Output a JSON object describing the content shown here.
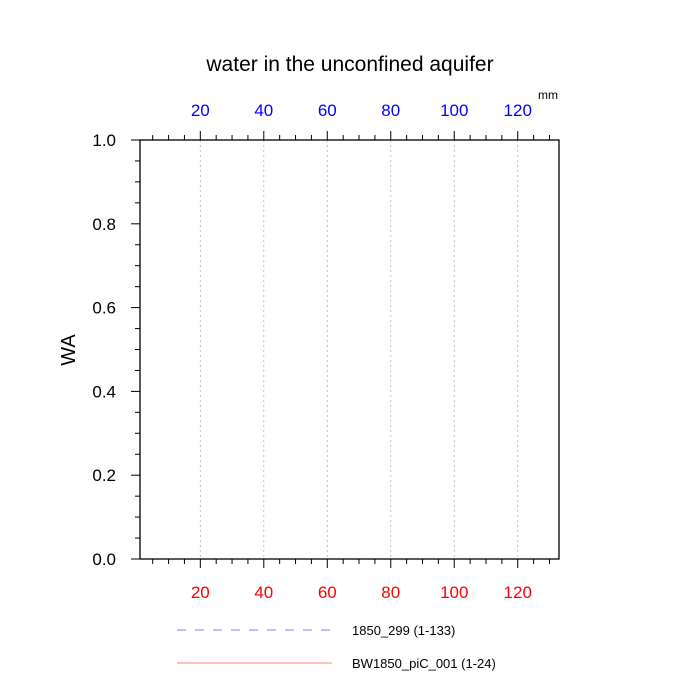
{
  "chart_data": {
    "type": "line",
    "title": "water in the unconfined aquifer",
    "ylabel": "WA",
    "top_axis_unit": "mm",
    "xlim": [
      1,
      133
    ],
    "ylim": [
      0,
      1.0
    ],
    "x_ticks": [
      20,
      40,
      60,
      80,
      100,
      120
    ],
    "x_tick_labels": [
      "20",
      "40",
      "60",
      "80",
      "100",
      "120"
    ],
    "y_ticks": [
      0,
      0.2,
      0.4,
      0.6,
      0.8,
      1.0
    ],
    "y_tick_labels": [
      "0.0",
      "0.2",
      "0.4",
      "0.6",
      "0.8",
      "1.0"
    ],
    "grid": "vertical dotted",
    "legend_placement": "bottom",
    "colors": {
      "top_tick_labels": "#0000ff",
      "bottom_tick_labels": "#ff0000",
      "series_1850_299": "#8080ff",
      "series_BW1850": "#ff8080"
    },
    "series": [
      {
        "name": "1850_299 (1-133)",
        "style": "dashed",
        "color": "#8080ff",
        "x": [
          1,
          133
        ],
        "y": [
          0,
          0
        ]
      },
      {
        "name": "BW1850_piC_001 (1-24)",
        "style": "solid",
        "color": "#ff8080",
        "x": [
          1,
          24
        ],
        "y": [
          0,
          0
        ]
      }
    ]
  }
}
